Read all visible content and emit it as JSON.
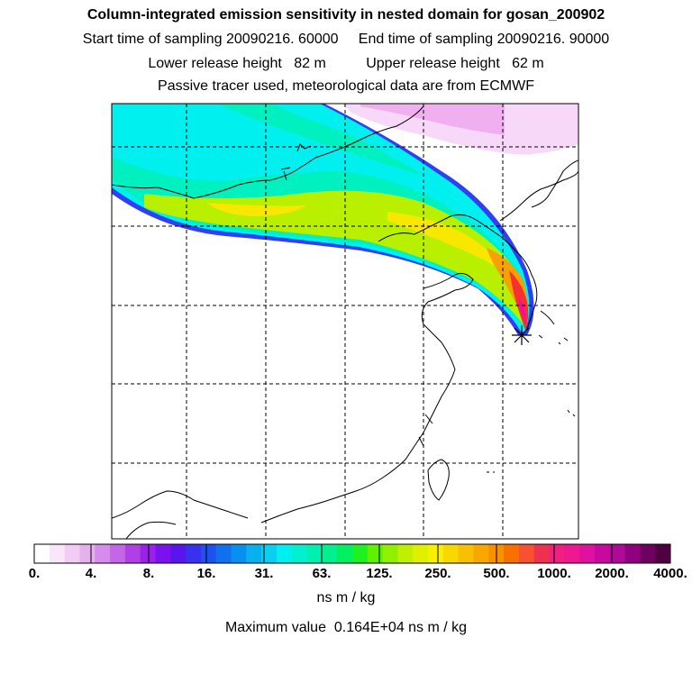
{
  "header": {
    "title": "Column-integrated emission sensitivity in nested domain for gosan_200902",
    "line2": "Start time of sampling 20090216. 60000     End time of sampling 20090216. 90000",
    "line3": "Lower release height   82 m          Upper release height   62 m",
    "line4": "Passive tracer used, meteorological data are from ECMWF"
  },
  "colorbar": {
    "tick_labels": [
      "0.",
      "4.",
      "8.",
      "16.",
      "31.",
      "63.",
      "125.",
      "250.",
      "500.",
      "1000.",
      "2000.",
      "4000."
    ],
    "colors": [
      "#ffffff",
      "#fae6fa",
      "#f2ccf5",
      "#e6b0f0",
      "#d68ceb",
      "#c466e6",
      "#b040e6",
      "#9a20ea",
      "#7c10f0",
      "#5a14f0",
      "#3a30f0",
      "#2050f0",
      "#1070f0",
      "#0890f0",
      "#08b0f0",
      "#08d0f0",
      "#00f0f0",
      "#00f0d0",
      "#00f0b0",
      "#00f090",
      "#00f060",
      "#20f020",
      "#60f000",
      "#90f000",
      "#c0f000",
      "#e0f000",
      "#f8f000",
      "#f8d800",
      "#f8c000",
      "#f8a800",
      "#f89000",
      "#f87000",
      "#f85030",
      "#f03050",
      "#f02080",
      "#f01890",
      "#e010a0",
      "#c808a0",
      "#b00898",
      "#900080",
      "#700060",
      "#500040"
    ],
    "units": "ns m / kg",
    "max_value_text": "Maximum value  0.164E+04 ns m / kg"
  },
  "map": {
    "plot_colors": {
      "cyan": "#00f0f0",
      "teal": "#00f0c0",
      "yellow_green": "#b8f000",
      "yellow": "#f8e800",
      "orange": "#f8a000",
      "red": "#f83030",
      "magenta": "#f010a0",
      "light_pink": "#f8d8f8",
      "pink": "#f0b0f0",
      "blue_edge": "#3040f0",
      "purple_edge": "#c040f0"
    },
    "receptor_marker": "star-icon"
  }
}
